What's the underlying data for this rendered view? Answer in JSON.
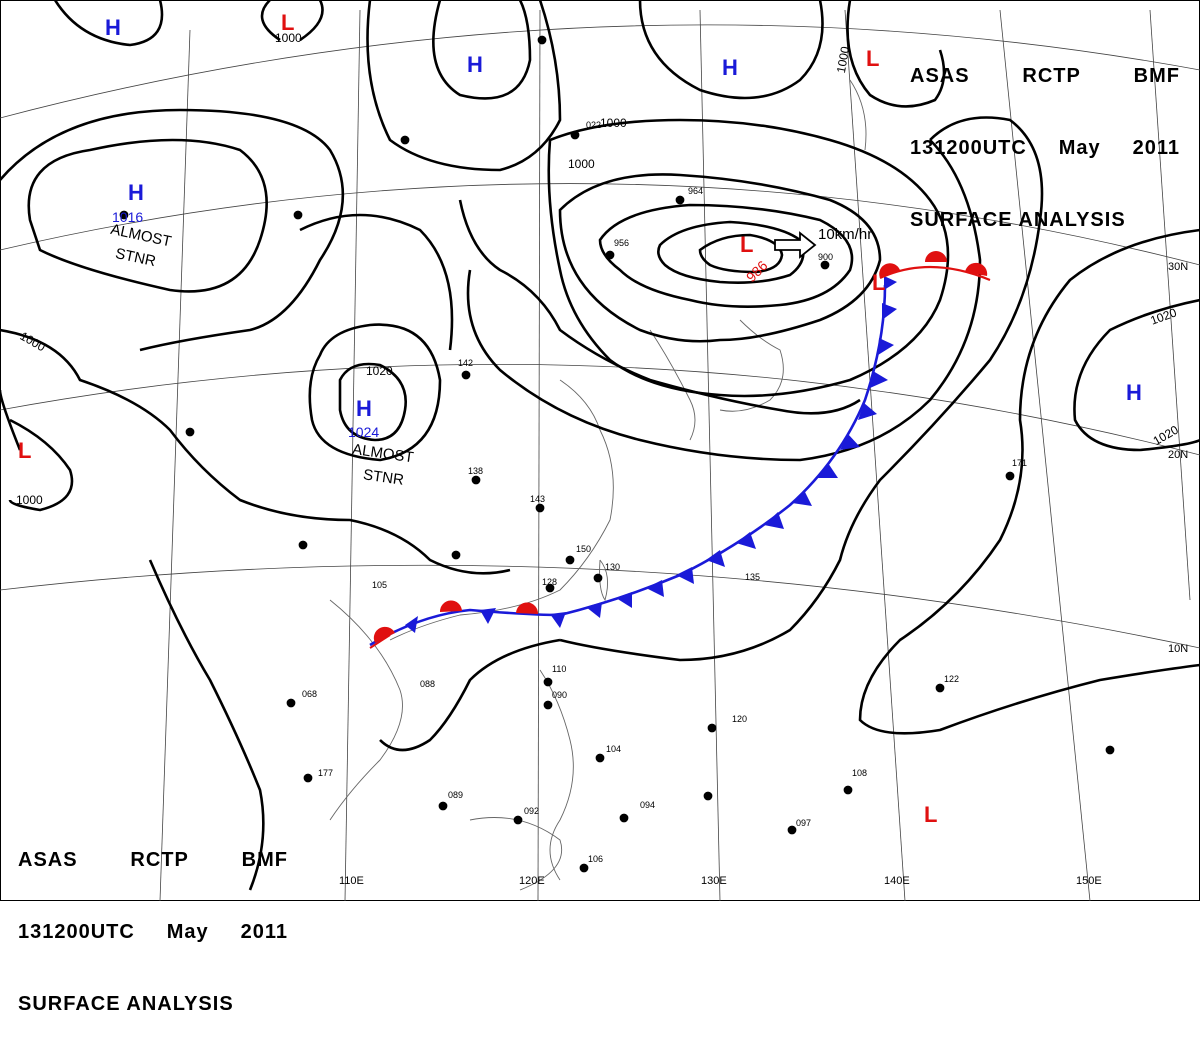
{
  "title": {
    "agency": "ASAS",
    "station": "RCTP",
    "code": "BMF",
    "time": "131200UTC",
    "month": "May",
    "year": "2011",
    "product": "SURFACE ANALYSIS"
  },
  "pressure_centers": [
    {
      "type": "H",
      "color": "#1a1ad8"
    },
    {
      "type": "H",
      "color": "#1a1ad8"
    },
    {
      "type": "H",
      "color": "#1a1ad8"
    },
    {
      "type": "H",
      "color": "#1a1ad8",
      "value": "1016"
    },
    {
      "type": "H",
      "color": "#1a1ad8",
      "value": "1024"
    },
    {
      "type": "H",
      "color": "#1a1ad8"
    },
    {
      "type": "L",
      "color": "#e01010"
    },
    {
      "type": "L",
      "color": "#e01010"
    },
    {
      "type": "L",
      "color": "#e01010"
    },
    {
      "type": "L",
      "color": "#e01010",
      "value": "986"
    },
    {
      "type": "L",
      "color": "#e01010"
    },
    {
      "type": "L",
      "color": "#e01010"
    }
  ],
  "annotations": {
    "almost_stnr_1": "ALMOST",
    "stnr_1": "STNR",
    "almost_stnr_2": "ALMOST",
    "stnr_2": "STNR",
    "motion": "10km/hr"
  },
  "isobar_labels": [
    "1000",
    "1000",
    "1000",
    "1000",
    "1020",
    "1020",
    "1020",
    "1000",
    "1000"
  ],
  "longitude_labels": [
    "110E",
    "120E",
    "130E",
    "140E",
    "150E"
  ],
  "latitude_labels": [
    "30N",
    "20N",
    "10N"
  ],
  "station_labels": [
    "022",
    "964",
    "956",
    "900",
    "128",
    "130",
    "150",
    "135",
    "105",
    "138",
    "143",
    "142",
    "110",
    "090",
    "104",
    "120",
    "171",
    "122",
    "097",
    "108",
    "088",
    "177",
    "068",
    "089",
    "092",
    "106",
    "094"
  ],
  "colors": {
    "front_cold": "#1a1ad8",
    "front_warm": "#e01010",
    "isobar": "#000000",
    "geo": "#555555"
  }
}
